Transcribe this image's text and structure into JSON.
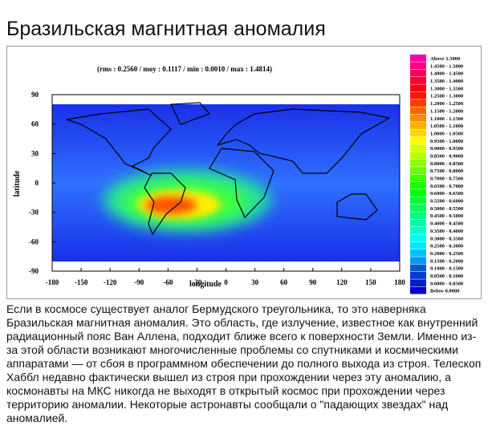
{
  "header": {
    "title": "Бразильская магнитная аномалия"
  },
  "figure": {
    "stats": "(rms :  0.2560  /  moy :   0.1117  /  min :   0.0010  /  max :   1.4814)",
    "x_label": "longitude",
    "y_label": "latitude",
    "x_ticks": [
      -180,
      -150,
      -120,
      -90,
      -60,
      -30,
      0,
      30,
      60,
      90,
      120,
      150,
      180
    ],
    "y_ticks": [
      90,
      60,
      30,
      0,
      -30,
      -60,
      -90
    ],
    "legend": [
      "Above   1.5000",
      "1.4500 - 1.5000",
      "1.4000 - 1.4500",
      "1.3500 - 1.4000",
      "1.3000 - 1.3500",
      "1.2500 - 1.3000",
      "1.2000 - 1.2500",
      "1.1500 - 1.2000",
      "1.1000 - 1.1500",
      "1.0500 - 1.1000",
      "1.0000 - 1.0500",
      "0.9500 - 1.0000",
      "0.9000 - 0.9500",
      "0.8500 - 0.9000",
      "0.8000 - 0.8500",
      "0.7500 - 0.8000",
      "0.7000 - 0.7500",
      "0.6500 - 0.7000",
      "0.6000 - 0.6500",
      "0.5500 - 0.6000",
      "0.5000 - 0.5500",
      "0.4500 - 0.5000",
      "0.4000 - 0.4500",
      "0.3500 - 0.4000",
      "0.3000 - 0.3500",
      "0.2500 - 0.3000",
      "0.2000 - 0.2500",
      "0.1500 - 0.2000",
      "0.1000 - 0.1500",
      "0.0500 - 0.1000",
      "0.0000 - 0.0500",
      "Below   0.0000"
    ]
  },
  "body": {
    "text": "Если в космосе существует аналог Бермудского треугольника, то это наверняка Бразильская магнитная аномалия. Это область, где излучение, известное как внутренний радиационный пояс Ван Аллена, подходит ближе всего к поверхности Земли. Именно из-за этой области возникают многочисленные проблемы со спутниками и космическими аппаратами — от сбоя в программном обеспечении до полного выхода из строя. Телескоп Хаббл недавно фактически вышел из строя при прохождении через эту аномалию, а космонавты на МКС никогда не выходят в открытый космос при прохождении через территорию аномалии. Некоторые астронавты сообщали о \"падающих звездах\" над аномалией."
  }
}
